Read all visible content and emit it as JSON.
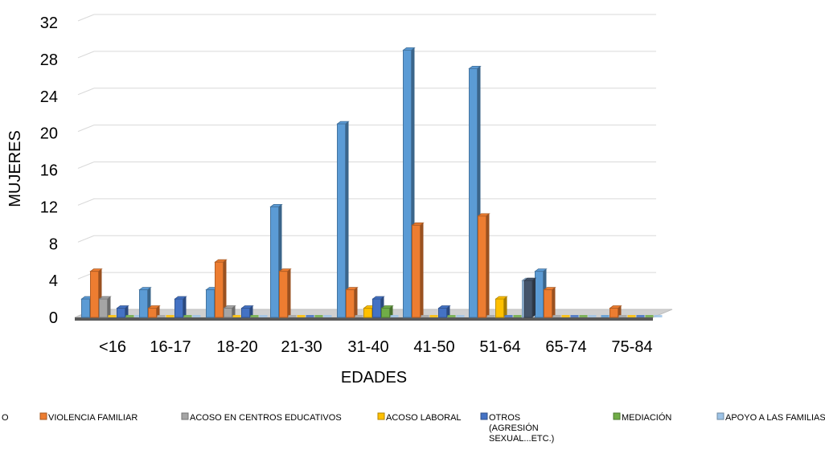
{
  "chart_data": {
    "type": "bar",
    "style": "3d-clustered-column",
    "xlabel": "EDADES",
    "ylabel": "MUJERES",
    "ylim": [
      0,
      32
    ],
    "yticks": [
      "0",
      "4",
      "8",
      "12",
      "16",
      "20",
      "24",
      "28",
      "32"
    ],
    "grid": true,
    "legend_position": "bottom",
    "categories": [
      "<16",
      "16-17",
      "18-20",
      "21-30",
      "31-40",
      "41-50",
      "51-64",
      "65-74",
      "75-84"
    ],
    "series": [
      {
        "name": "",
        "color": "#5B9BD5",
        "values": [
          2,
          3,
          3,
          12,
          21,
          29,
          27,
          5,
          0
        ]
      },
      {
        "name": "VIOLENCIA FAMILIAR",
        "color": "#ED7D31",
        "values": [
          5,
          1,
          6,
          5,
          3,
          10,
          11,
          3,
          1
        ]
      },
      {
        "name": "ACOSO EN CENTROS EDUCATIVOS",
        "color": "#A5A5A5",
        "values": [
          2,
          0,
          1,
          0,
          0,
          0,
          0,
          0,
          0
        ]
      },
      {
        "name": "ACOSO LABORAL",
        "color": "#FFC000",
        "values": [
          0,
          0,
          0,
          0,
          1,
          0,
          2,
          0,
          0
        ]
      },
      {
        "name": "OTROS (AGRESIÓN SEXUAL...ETC.)",
        "color": "#4472C4",
        "values": [
          1,
          2,
          1,
          0,
          2,
          1,
          0,
          0,
          0
        ]
      },
      {
        "name": "MEDIACIÓN",
        "color": "#70AD47",
        "values": [
          0,
          0,
          0,
          0,
          1,
          0,
          0,
          0,
          0
        ]
      },
      {
        "name": "APOYO A LAS FAMILIAS",
        "color": "#9DC3E6",
        "values": [
          0,
          0,
          0,
          0,
          0,
          0,
          4,
          0,
          0
        ]
      }
    ],
    "extra_marks": [
      {
        "category": "51-64",
        "value": 4,
        "color": "#44546A"
      }
    ],
    "legend": {
      "partial_first_label": "O",
      "labels": [
        "VIOLENCIA FAMILIAR",
        "ACOSO EN CENTROS EDUCATIVOS",
        "ACOSO LABORAL",
        "OTROS",
        "(AGRESIÓN",
        "SEXUAL...ETC.)",
        "MEDIACIÓN",
        "APOYO A LAS FAMILIAS"
      ]
    }
  }
}
